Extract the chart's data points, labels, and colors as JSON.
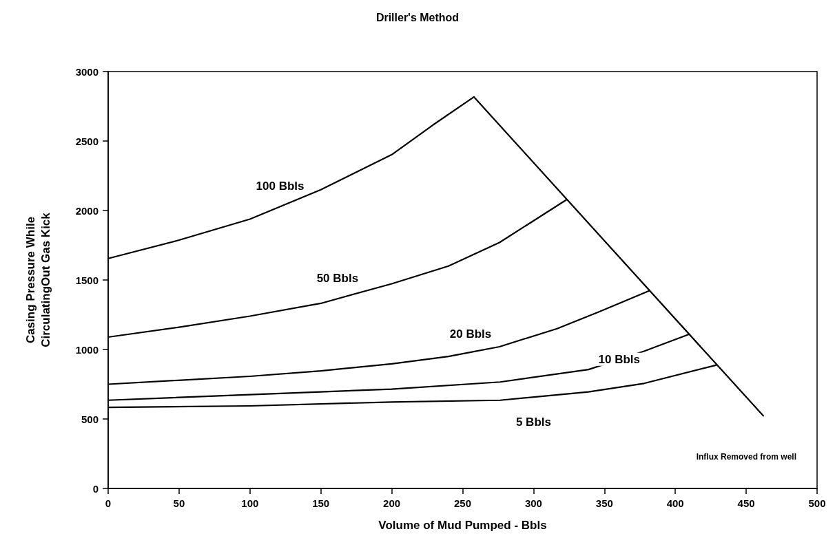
{
  "chart_data": {
    "type": "line",
    "title": "Driller's Method",
    "xlabel": "Volume of Mud Pumped - Bbls",
    "ylabel": "Casing Pressure While\nCirculatingOut Gas Kick",
    "xlim": [
      0,
      500
    ],
    "xticks": [
      0,
      50,
      100,
      150,
      200,
      250,
      300,
      350,
      400,
      450,
      500
    ],
    "ylim": [
      0,
      3000
    ],
    "yticks": [
      0,
      500,
      1000,
      1500,
      2000,
      2500,
      3000
    ],
    "grid": false,
    "marker": "none",
    "line_style": "solid",
    "series": [
      {
        "name": "100 Bbls",
        "color": "#000000",
        "x": [
          0,
          50,
          100,
          150,
          200,
          229,
          258
        ],
        "values": [
          1655,
          1787,
          1938,
          2150,
          2402,
          2615,
          2817
        ]
      },
      {
        "name": "50 Bbls",
        "color": "#000000",
        "x": [
          0,
          50,
          100,
          150,
          200,
          240,
          276,
          323.5
        ],
        "values": [
          1089,
          1160,
          1240,
          1332,
          1473,
          1600,
          1770,
          2079
        ]
      },
      {
        "name": "20 Bbls",
        "color": "#000000",
        "x": [
          0,
          100,
          150,
          200,
          240,
          276,
          316.6,
          346.5,
          381.5
        ],
        "values": [
          750,
          807,
          846,
          897,
          950,
          1020,
          1150,
          1272,
          1422
        ]
      },
      {
        "name": "10 Bbls",
        "color": "#000000",
        "x": [
          0,
          100,
          200,
          276.5,
          338.8,
          378,
          409.6
        ],
        "values": [
          635,
          675,
          715,
          766,
          856,
          988,
          1109
        ]
      },
      {
        "name": "5 Bbls",
        "color": "#000000",
        "x": [
          0,
          100,
          200,
          276.5,
          338.8,
          378,
          428.6
        ],
        "values": [
          584,
          594,
          622,
          635,
          695,
          756,
          887
        ]
      },
      {
        "color": "#000000",
        "x": [
          258,
          462
        ],
        "values": [
          2817,
          523
        ]
      }
    ],
    "annotations": [
      "Influx Removed from well"
    ]
  }
}
